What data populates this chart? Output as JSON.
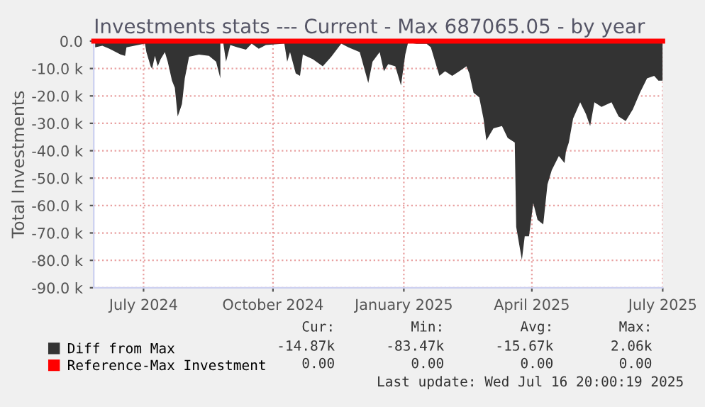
{
  "chart_data": {
    "type": "area",
    "title": "Investments stats --- Current - Max 687065.05 - by year",
    "ylabel": "Total Investments",
    "xlim": [
      "2024-06-11",
      "2025-07-16"
    ],
    "xticks": [
      {
        "value": "2024-07-16",
        "label": "July 2024"
      },
      {
        "value": "2024-10-15",
        "label": "October 2024"
      },
      {
        "value": "2025-01-15",
        "label": "January 2025"
      },
      {
        "value": "2025-04-15",
        "label": "April 2025"
      },
      {
        "value": "2025-07-16",
        "label": "July 2025"
      }
    ],
    "ylim": [
      -90000,
      0
    ],
    "yticks": [
      {
        "value": -90000,
        "label": "-90.0 k"
      },
      {
        "value": -80000,
        "label": "-80.0 k"
      },
      {
        "value": -70000,
        "label": "-70.0 k"
      },
      {
        "value": -60000,
        "label": "-60.0 k"
      },
      {
        "value": -50000,
        "label": "-50.0 k"
      },
      {
        "value": -40000,
        "label": "-40.0 k"
      },
      {
        "value": -30000,
        "label": "-30.0 k"
      },
      {
        "value": -20000,
        "label": "-20.0 k"
      },
      {
        "value": -10000,
        "label": "-10.0 k"
      },
      {
        "value": 0,
        "label": "0.0"
      }
    ],
    "grid": true,
    "legend": "bottom",
    "series": [
      {
        "name": "Diff from Max",
        "color": "#333333",
        "x": [
          "2024-06-12",
          "2024-06-17",
          "2024-06-22",
          "2024-06-30",
          "2024-07-03",
          "2024-07-04",
          "2024-07-12",
          "2024-07-17",
          "2024-07-18",
          "2024-07-21",
          "2024-07-22",
          "2024-07-24",
          "2024-07-26",
          "2024-07-28",
          "2024-07-31",
          "2024-08-02",
          "2024-08-05",
          "2024-08-07",
          "2024-08-09",
          "2024-08-12",
          "2024-08-14",
          "2024-08-17",
          "2024-08-24",
          "2024-08-31",
          "2024-09-05",
          "2024-09-08",
          "2024-09-09",
          "2024-09-10",
          "2024-09-12",
          "2024-09-15",
          "2024-09-20",
          "2024-09-26",
          "2024-09-30",
          "2024-10-05",
          "2024-10-10",
          "2024-10-23",
          "2024-10-25",
          "2024-10-27",
          "2024-10-31",
          "2024-11-03",
          "2024-11-05",
          "2024-11-12",
          "2024-11-19",
          "2024-11-25",
          "2024-12-02",
          "2024-12-07",
          "2024-12-15",
          "2024-12-21",
          "2024-12-24",
          "2024-12-29",
          "2025-01-01",
          "2025-01-04",
          "2025-01-09",
          "2025-01-13",
          "2025-01-16",
          "2025-01-18",
          "2025-01-24",
          "2025-01-31",
          "2025-02-03",
          "2025-02-06",
          "2025-02-09",
          "2025-02-13",
          "2025-02-18",
          "2025-02-23",
          "2025-02-28",
          "2025-03-02",
          "2025-03-05",
          "2025-03-09",
          "2025-03-12",
          "2025-03-14",
          "2025-03-19",
          "2025-03-25",
          "2025-03-29",
          "2025-04-03",
          "2025-04-04",
          "2025-04-08",
          "2025-04-10",
          "2025-04-13",
          "2025-04-16",
          "2025-04-19",
          "2025-04-23",
          "2025-04-26",
          "2025-04-29",
          "2025-05-04",
          "2025-05-08",
          "2025-05-09",
          "2025-05-11",
          "2025-05-14",
          "2025-05-19",
          "2025-05-23",
          "2025-05-26",
          "2025-05-29",
          "2025-06-03",
          "2025-06-10",
          "2025-06-15",
          "2025-06-20",
          "2025-06-25",
          "2025-06-30",
          "2025-07-05",
          "2025-07-10",
          "2025-07-13",
          "2025-07-16"
        ],
        "values": [
          -2300,
          -1700,
          -2800,
          -4900,
          -5400,
          -2300,
          -1400,
          -900,
          -4000,
          -9200,
          -10100,
          -5400,
          -9200,
          -6600,
          -4000,
          -7500,
          -14400,
          -17000,
          -27500,
          -23000,
          -13600,
          -5700,
          -4900,
          -5400,
          -7500,
          -13600,
          null,
          -500,
          -7500,
          -1400,
          -2300,
          -3100,
          -900,
          -2800,
          -1400,
          -900,
          -7500,
          -4000,
          -11800,
          -12700,
          -4900,
          -6600,
          -9200,
          -5700,
          -900,
          -2300,
          -4000,
          -15300,
          -7500,
          -4000,
          -11000,
          -8400,
          -9200,
          -16200,
          -4900,
          -500,
          -1000,
          -1000,
          -2300,
          -7500,
          -12700,
          -11000,
          -12700,
          -11000,
          -9200,
          -11800,
          -18800,
          -20500,
          -28300,
          -36200,
          -31800,
          -31000,
          -35300,
          -37000,
          -67800,
          -79800,
          -71200,
          -71200,
          -59100,
          -65200,
          -66900,
          -52300,
          -47100,
          -41900,
          -44500,
          -40200,
          -37000,
          -28300,
          -22300,
          -26600,
          -31000,
          -22300,
          -24000,
          -22300,
          -27500,
          -29200,
          -24900,
          -18800,
          -13600,
          -12700,
          -14400,
          -14400
        ]
      },
      {
        "name": "Reference-Max Investment",
        "type": "line",
        "color": "#ff0000",
        "x": [
          "2024-06-11",
          "2025-07-16"
        ],
        "values": [
          0,
          0
        ]
      }
    ],
    "annotations": [
      "Cur:",
      "Min:",
      "Avg:",
      "Max:",
      "-14.87k",
      "-83.47k",
      "-15.67k",
      "2.06k",
      "0.00",
      "0.00",
      "0.00",
      "0.00",
      "Last update: Wed Jul 16 20:00:19 2025"
    ]
  }
}
